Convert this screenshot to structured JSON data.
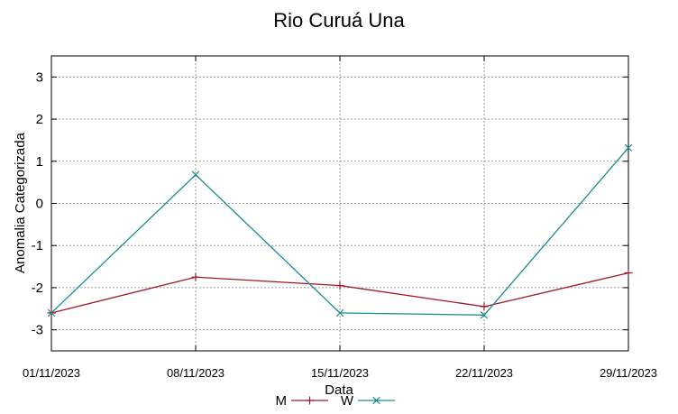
{
  "chart_data": {
    "type": "line",
    "title": "Rio Curuá Una",
    "xlabel": "Data",
    "ylabel": "Anomalia Categorizada",
    "x": [
      "01/11/2023",
      "08/11/2023",
      "15/11/2023",
      "22/11/2023",
      "29/11/2023"
    ],
    "ylim": [
      -3.5,
      3.5
    ],
    "yticks": [
      "3",
      "2",
      "1",
      "0",
      "-1",
      "-2",
      "-3"
    ],
    "grid": true,
    "legend_position": "bottom",
    "series": [
      {
        "name": "M",
        "color": "#a0182a",
        "marker": "plus",
        "values": [
          -2.6,
          -1.75,
          -1.95,
          -2.45,
          -1.65
        ]
      },
      {
        "name": "W",
        "color": "#1a8c8c",
        "marker": "cross",
        "values": [
          -2.6,
          0.68,
          -2.6,
          -2.65,
          1.32
        ]
      }
    ]
  }
}
